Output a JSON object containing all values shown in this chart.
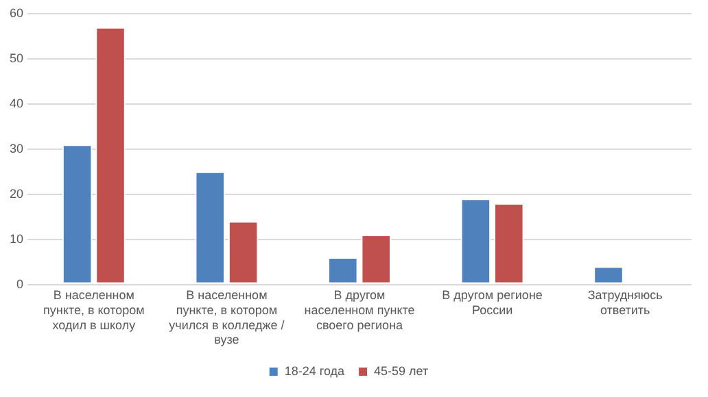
{
  "chart_data": {
    "type": "bar",
    "categories": [
      "В населенном пункте, в котором ходил в школу",
      "В населенном пункте, в котором учился в колледже / вузе",
      "В другом населенном пункте своего региона",
      "В другом регионе России",
      "Затрудняюсь ответить"
    ],
    "series": [
      {
        "name": "18-24 года",
        "color": "#4f81bd",
        "values": [
          31,
          25,
          6,
          19,
          4
        ]
      },
      {
        "name": "45-59 лет",
        "color": "#c0504d",
        "values": [
          57,
          14,
          11,
          18,
          null
        ]
      }
    ],
    "ylim": [
      0,
      60
    ],
    "yticks": [
      0,
      10,
      20,
      30,
      40,
      50,
      60
    ],
    "grid": "y",
    "legend": "bottom"
  }
}
